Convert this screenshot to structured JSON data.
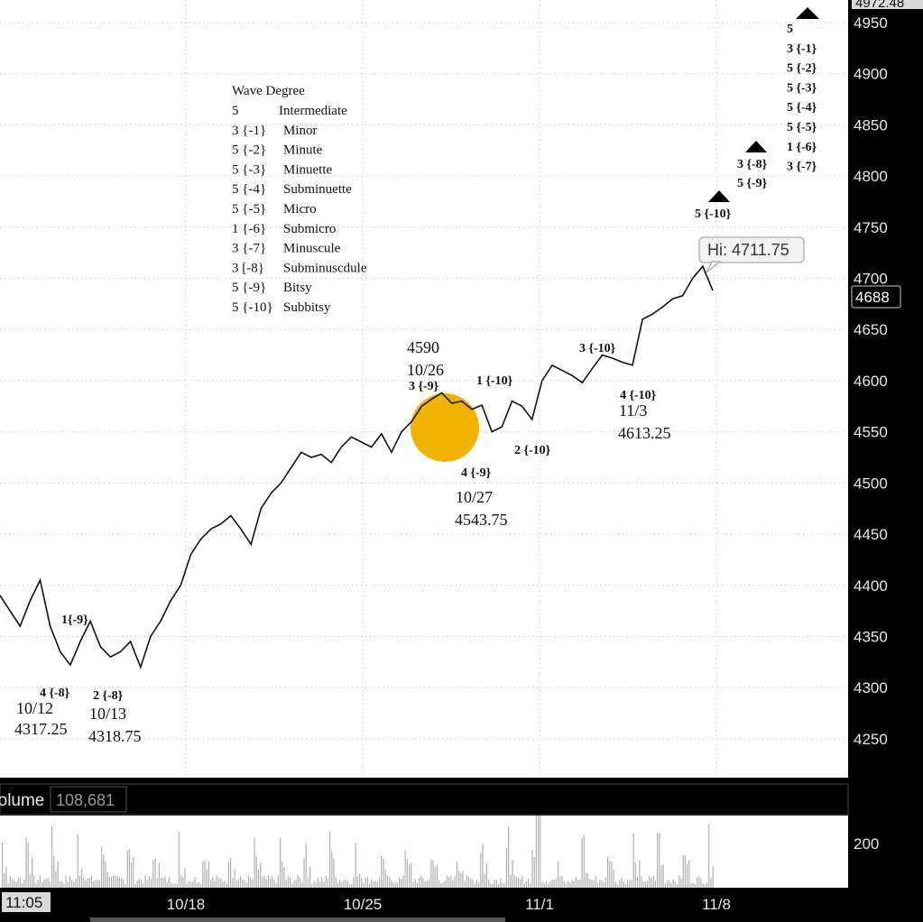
{
  "colors": {
    "background": "#ffffff",
    "frame": "#000000",
    "price_line": "#111111",
    "volume_bar": "#b0b0b0",
    "highlight_circle": "#f0b400",
    "axis_text": "#e6e6e6"
  },
  "chart_data": {
    "type": "line",
    "title": "",
    "ylim": [
      4212,
      4972
    ],
    "y_ticks": [
      "4250",
      "4300",
      "4350",
      "4400",
      "4450",
      "4500",
      "4550",
      "4600",
      "4650",
      "4700",
      "4750",
      "4800",
      "4850",
      "4900",
      "4950"
    ],
    "top_price_label": "4972.48",
    "last_price_label": "4688",
    "last_price": 4688,
    "x_tick_labels": [
      "10/18",
      "10/25",
      "11/1",
      "11/8"
    ],
    "start_label": "11:05",
    "high_callout": "Hi: 4711.75",
    "high_value": 4711.75,
    "grid": true,
    "series": [
      {
        "values": [
          4390,
          4375,
          4360,
          4385,
          4405,
          4360,
          4335,
          4322,
          4345,
          4365,
          4340,
          4330,
          4335,
          4345,
          4320,
          4350,
          4365,
          4385,
          4400,
          4430,
          4445,
          4455,
          4460,
          4468,
          4455,
          4440,
          4475,
          4490,
          4500,
          4515,
          4530,
          4525,
          4528,
          4520,
          4535,
          4545,
          4540,
          4535,
          4548,
          4530,
          4550,
          4560,
          4575,
          4582,
          4588,
          4578,
          4580,
          4572,
          4576,
          4550,
          4555,
          4580,
          4575,
          4562,
          4600,
          4615,
          4610,
          4605,
          4598,
          4612,
          4625,
          4622,
          4618,
          4615,
          4660,
          4665,
          4672,
          4680,
          4683,
          4700,
          4711.75,
          4688
        ]
      }
    ],
    "volume": {
      "label": "Volume",
      "value": "108,681",
      "y_tick": "200"
    },
    "legend": {
      "title": "Wave Degree",
      "entries": [
        {
          "count": "5",
          "name": "Intermediate"
        },
        {
          "count": "3 {-1}",
          "name": "Minor"
        },
        {
          "count": "5 {-2}",
          "name": "Minute"
        },
        {
          "count": "5 {-3}",
          "name": "Minuette"
        },
        {
          "count": "5 {-4}",
          "name": "Subminuette"
        },
        {
          "count": "5 {-5}",
          "name": "Micro"
        },
        {
          "count": "1 {-6}",
          "name": "Submicro"
        },
        {
          "count": "3 {-7}",
          "name": "Minuscule"
        },
        {
          "count": "3 [-8}",
          "name": "Subminuscdule"
        },
        {
          "count": "5 {-9}",
          "name": "Bitsy"
        },
        {
          "count": "5 {-10}",
          "name": "Subbitsy"
        }
      ]
    },
    "annotations": {
      "wave_4_8": "4 {-8}",
      "date_10_12": "10/12",
      "price_4317": "4317.25",
      "wave_1_9": "1{-9}",
      "wave_2_8": "2 {-8}",
      "date_10_13": "10/13",
      "price_4318": "4318.75",
      "price_4590": "4590",
      "date_10_26": "10/26",
      "wave_3_9": "3 {-9}",
      "wave_4_9": "4 {-9}",
      "date_10_27": "10/27",
      "price_4543": "4543.75",
      "wave_1_10": "1 {-10}",
      "wave_2_10": "2 {-10}",
      "wave_3_10": "3 {-10}",
      "wave_4_10": "4 {-10}",
      "date_11_3": "11/3",
      "price_4613": "4613.25",
      "wave_5_10": "5 {-10}",
      "wave_3_8": "3 {-8}",
      "wave_5_9": "5 {-9}",
      "stack": [
        "5",
        "3 {-1}",
        "5 {-2}",
        "5 {-3}",
        "5 {-4}",
        "5 {-5}",
        "1 {-6}",
        "3 {-7}"
      ]
    }
  }
}
